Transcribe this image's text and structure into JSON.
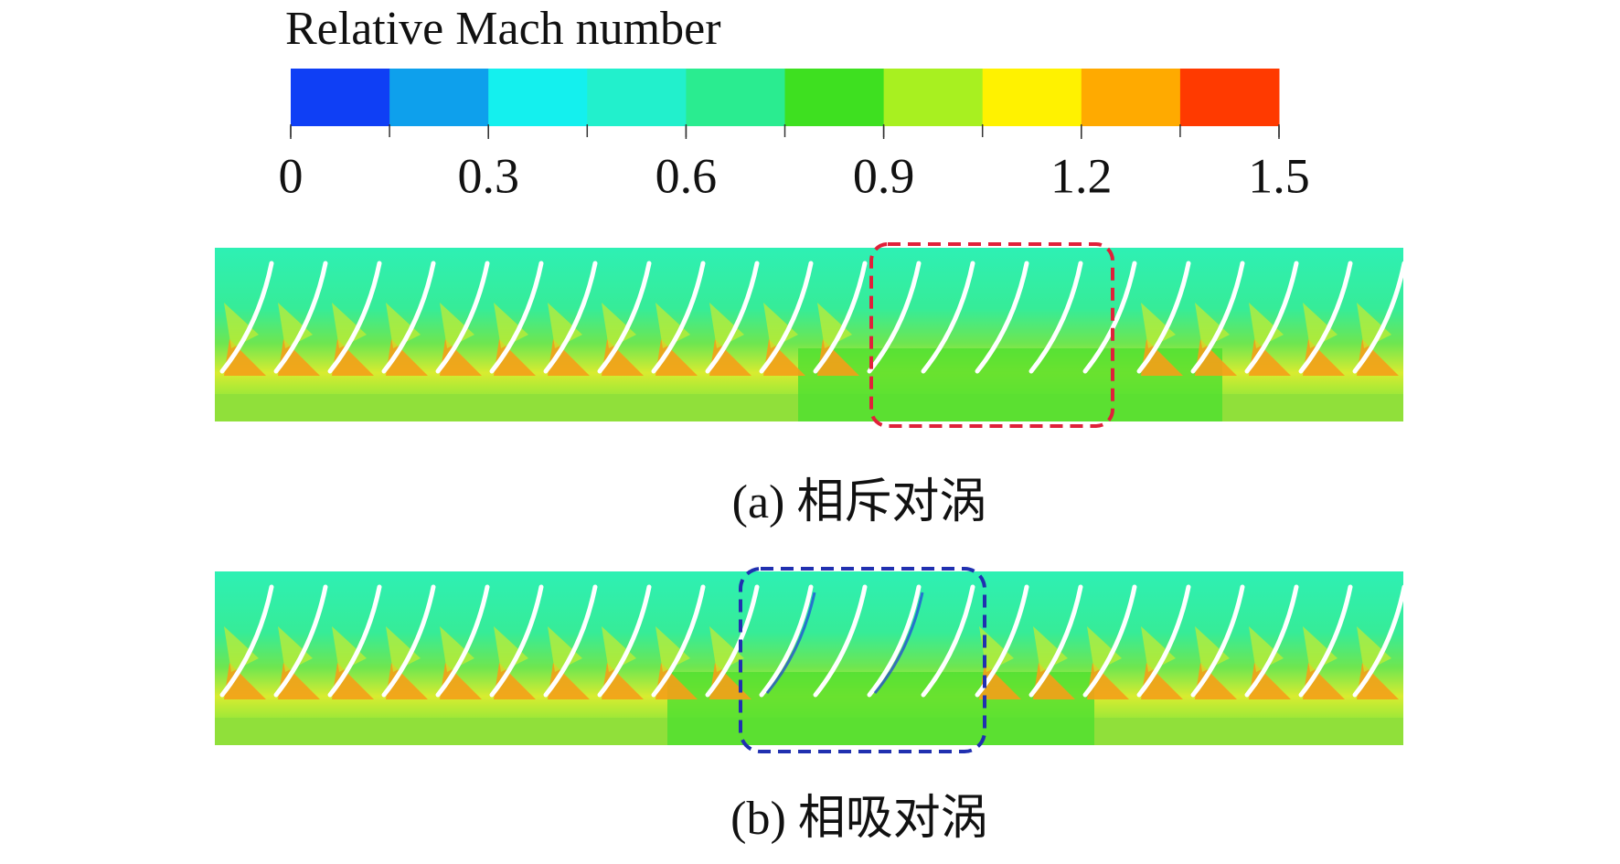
{
  "colorbar": {
    "title": "Relative Mach number",
    "lim": [
      0,
      1.5
    ],
    "ticks": [
      0,
      0.3,
      0.6,
      0.9,
      1.2,
      1.5
    ],
    "colors": [
      "#0f3ff5",
      "#0ea0ec",
      "#14f0ee",
      "#22f0cc",
      "#2aec90",
      "#3ee020",
      "#a8f020",
      "#fff200",
      "#ffaa00",
      "#ff3a00"
    ]
  },
  "panels": [
    {
      "caption": "(a) 相斥对涡",
      "box_color": "#e0203a"
    },
    {
      "caption": "(b) 相吸对涡",
      "box_color": "#2030b0"
    }
  ]
}
